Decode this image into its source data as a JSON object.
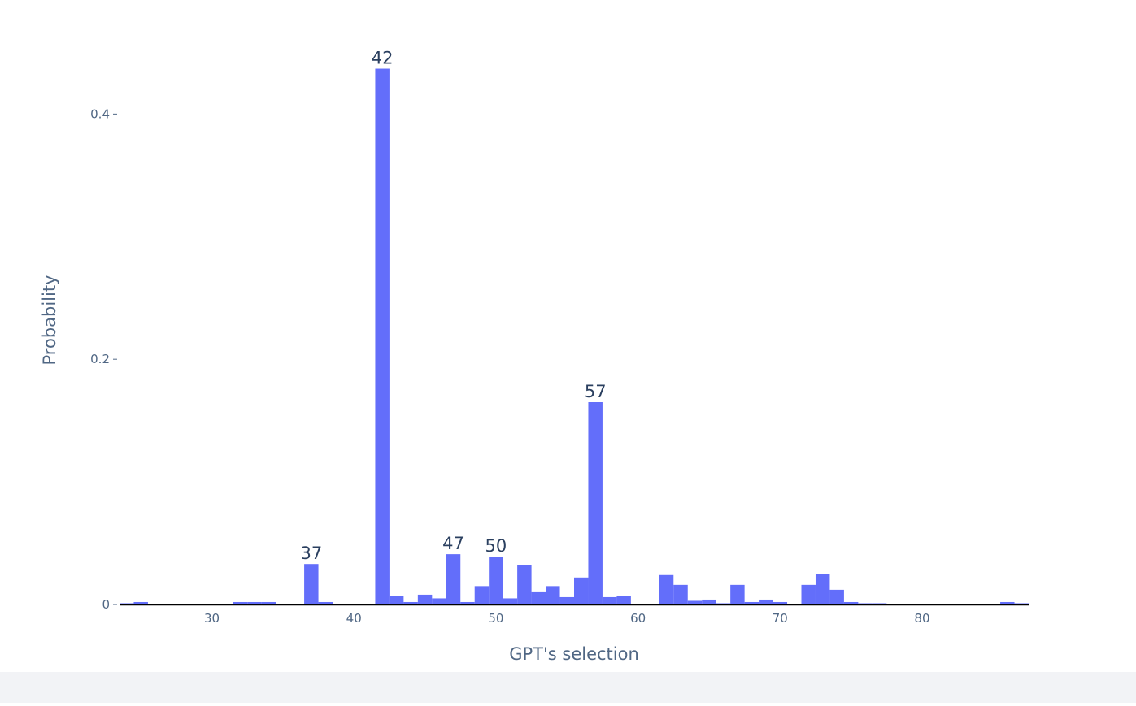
{
  "colors": {
    "bar": "#636efa",
    "axis_text": "#506784",
    "label_text": "#2a3f5f",
    "baseline": "#000000"
  },
  "chart_data": {
    "type": "bar",
    "xlabel": "GPT's selection",
    "ylabel": "Probability",
    "xlim": [
      23.5,
      87.5
    ],
    "ylim": [
      0,
      0.44
    ],
    "xticks": [
      30,
      40,
      50,
      60,
      70,
      80
    ],
    "yticks": [
      0,
      0.2,
      0.4
    ],
    "ytick_labels": [
      "0",
      "0.2",
      "0.4"
    ],
    "grid": false,
    "x": [
      24,
      25,
      32,
      33,
      34,
      37,
      38,
      42,
      43,
      44,
      45,
      46,
      47,
      48,
      49,
      50,
      51,
      52,
      53,
      54,
      55,
      56,
      57,
      58,
      59,
      62,
      63,
      64,
      65,
      66,
      67,
      68,
      69,
      70,
      72,
      73,
      74,
      75,
      76,
      77,
      86,
      87
    ],
    "values": [
      0.001,
      0.002,
      0.002,
      0.002,
      0.002,
      0.033,
      0.002,
      0.437,
      0.007,
      0.002,
      0.008,
      0.005,
      0.041,
      0.002,
      0.015,
      0.039,
      0.005,
      0.032,
      0.01,
      0.015,
      0.006,
      0.022,
      0.165,
      0.006,
      0.007,
      0.024,
      0.016,
      0.003,
      0.004,
      0.001,
      0.016,
      0.002,
      0.004,
      0.002,
      0.016,
      0.025,
      0.012,
      0.002,
      0.001,
      0.001,
      0.002,
      0.001
    ],
    "annotations": [
      {
        "x": 37,
        "text": "37"
      },
      {
        "x": 42,
        "text": "42"
      },
      {
        "x": 47,
        "text": "47"
      },
      {
        "x": 50,
        "text": "50"
      },
      {
        "x": 57,
        "text": "57"
      }
    ]
  }
}
